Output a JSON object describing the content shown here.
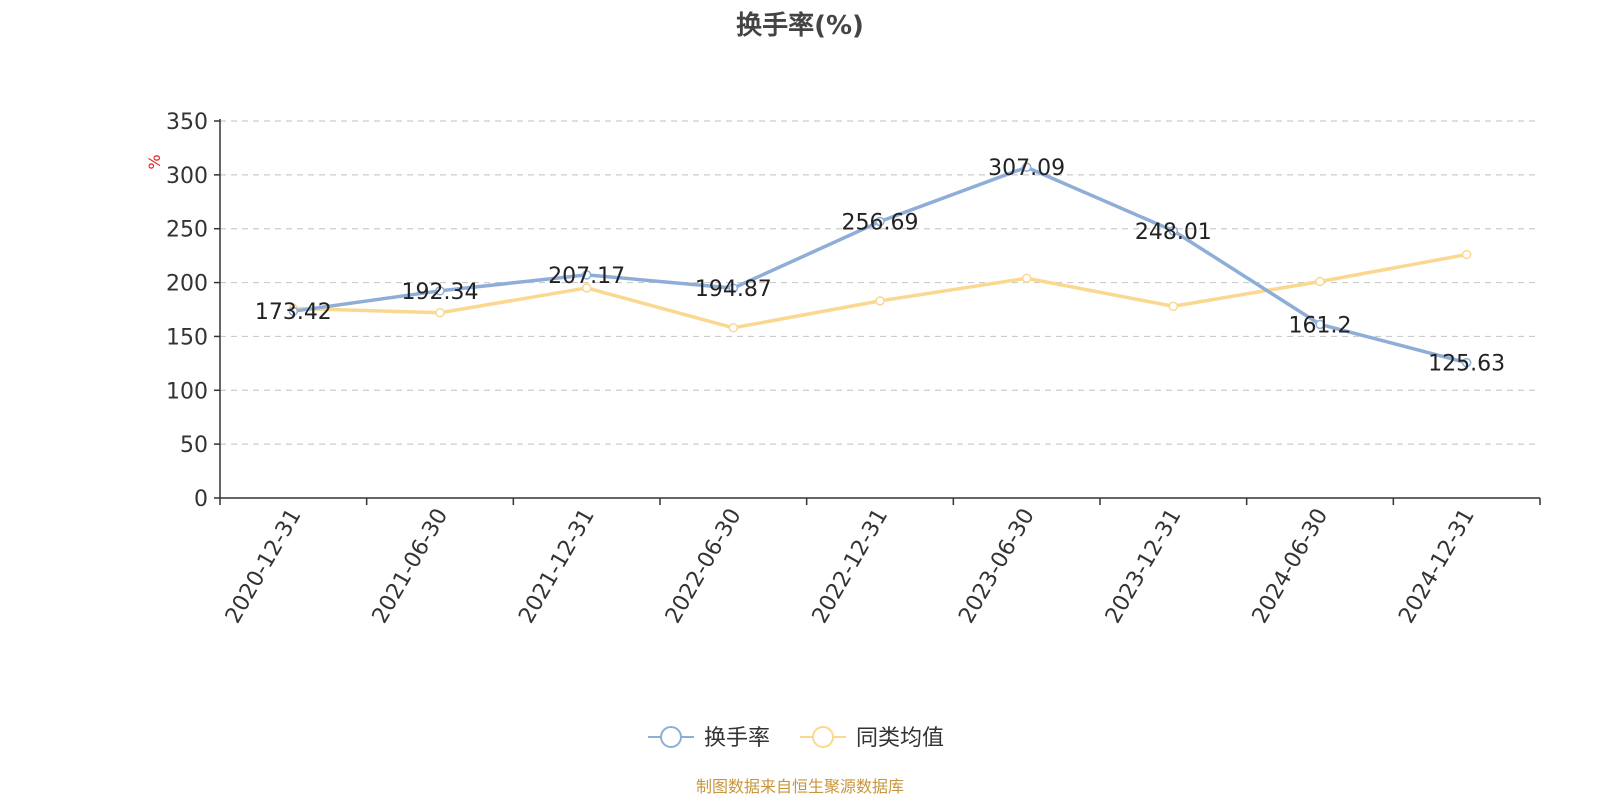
{
  "chart_data": {
    "type": "line",
    "title": "换手率(%)",
    "ylabel": "%",
    "ylim": [
      0,
      350
    ],
    "yticks": [
      0,
      50,
      100,
      150,
      200,
      250,
      300,
      350
    ],
    "grid": true,
    "legend_position": "bottom-center",
    "categories": [
      "2020-12-31",
      "2021-06-30",
      "2021-12-31",
      "2022-06-30",
      "2022-12-31",
      "2023-06-30",
      "2023-12-31",
      "2024-06-30",
      "2024-12-31"
    ],
    "series": [
      {
        "name": "换手率",
        "color": "#8eaed8",
        "values": [
          173.42,
          192.34,
          207.17,
          194.87,
          256.69,
          307.09,
          248.01,
          161.2,
          125.63
        ],
        "labels": [
          "173.42",
          "192.34",
          "207.17",
          "194.87",
          "256.69",
          "307.09",
          "248.01",
          "161.2",
          "125.63"
        ]
      },
      {
        "name": "同类均值",
        "color": "#fad890",
        "values": [
          176,
          172,
          195,
          158,
          183,
          204,
          178,
          201,
          226
        ]
      }
    ],
    "source": "制图数据来自恒生聚源数据库",
    "unit_color": "#e02020",
    "source_color": "#c8963c"
  }
}
